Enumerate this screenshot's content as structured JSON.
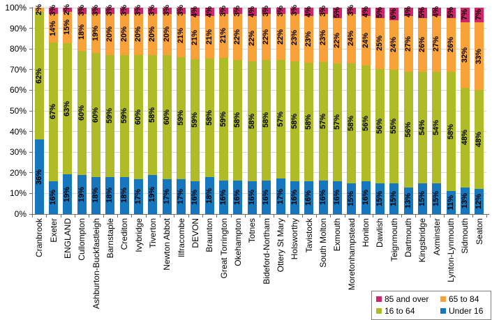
{
  "chart_data": {
    "type": "bar",
    "stacked": true,
    "title": "",
    "xlabel": "",
    "ylabel": "",
    "ylim": [
      0,
      100
    ],
    "yticks": [
      "0%",
      "10%",
      "20%",
      "30%",
      "40%",
      "50%",
      "60%",
      "70%",
      "80%",
      "90%",
      "100%"
    ],
    "grid": true,
    "legend_position": "bottom-right",
    "value_label_suffix": "%",
    "categories": [
      "Cranbrook",
      "Exeter",
      "ENGLAND",
      "Cullompton",
      "Ashburton-Buckfastleigh",
      "Barnstaple",
      "Crediton",
      "Ivybridge",
      "Tiverton",
      "Newton Abbot",
      "Ilfracombe",
      "DEVON",
      "Braunton",
      "Great Torrington",
      "Okehampton",
      "Totnes",
      "Bideford-Northam",
      "Ottery St Mary",
      "Holsworthy",
      "Tavistock",
      "South Molton",
      "Exmouth",
      "Moretonhampstead",
      "Honiton",
      "Dawlish",
      "Teignmouth",
      "Dartmouth",
      "Kingsbridge",
      "Axminster",
      "Lynton-Lynmouth",
      "Sidmouth",
      "Seaton"
    ],
    "series": [
      {
        "name": "Under 16",
        "color": "#1777be",
        "values": [
          36,
          16,
          19,
          19,
          18,
          18,
          18,
          17,
          19,
          17,
          17,
          16,
          18,
          16,
          16,
          16,
          16,
          17,
          16,
          16,
          16,
          16,
          15,
          16,
          15,
          15,
          13,
          15,
          15,
          11,
          13,
          12
        ]
      },
      {
        "name": "16 to 64",
        "color": "#afbc28",
        "values": [
          62,
          67,
          63,
          60,
          60,
          59,
          59,
          60,
          58,
          60,
          59,
          59,
          58,
          59,
          58,
          58,
          58,
          57,
          58,
          58,
          57,
          57,
          58,
          56,
          56,
          55,
          56,
          54,
          54,
          58,
          48,
          48
        ]
      },
      {
        "name": "65 to 84",
        "color": "#f9a23a",
        "values": [
          2,
          14,
          15,
          18,
          19,
          20,
          20,
          20,
          20,
          20,
          21,
          21,
          21,
          21,
          22,
          22,
          22,
          22,
          23,
          23,
          23,
          22,
          24,
          24,
          25,
          24,
          27,
          26,
          27,
          26,
          32,
          33
        ]
      },
      {
        "name": "85 and over",
        "color": "#d3246a",
        "values": [
          null,
          3,
          2,
          3,
          3,
          3,
          3,
          3,
          3,
          3,
          3,
          4,
          4,
          3,
          3,
          4,
          3,
          3,
          3,
          4,
          3,
          5,
          3,
          4,
          5,
          6,
          4,
          5,
          4,
          5,
          7,
          7
        ]
      }
    ],
    "legend_items": [
      {
        "label": "85 and over",
        "color": "#d3246a"
      },
      {
        "label": "65 to 84",
        "color": "#f9a23a"
      },
      {
        "label": "16 to 64",
        "color": "#afbc28"
      },
      {
        "label": "Under 16",
        "color": "#1777be"
      }
    ]
  }
}
